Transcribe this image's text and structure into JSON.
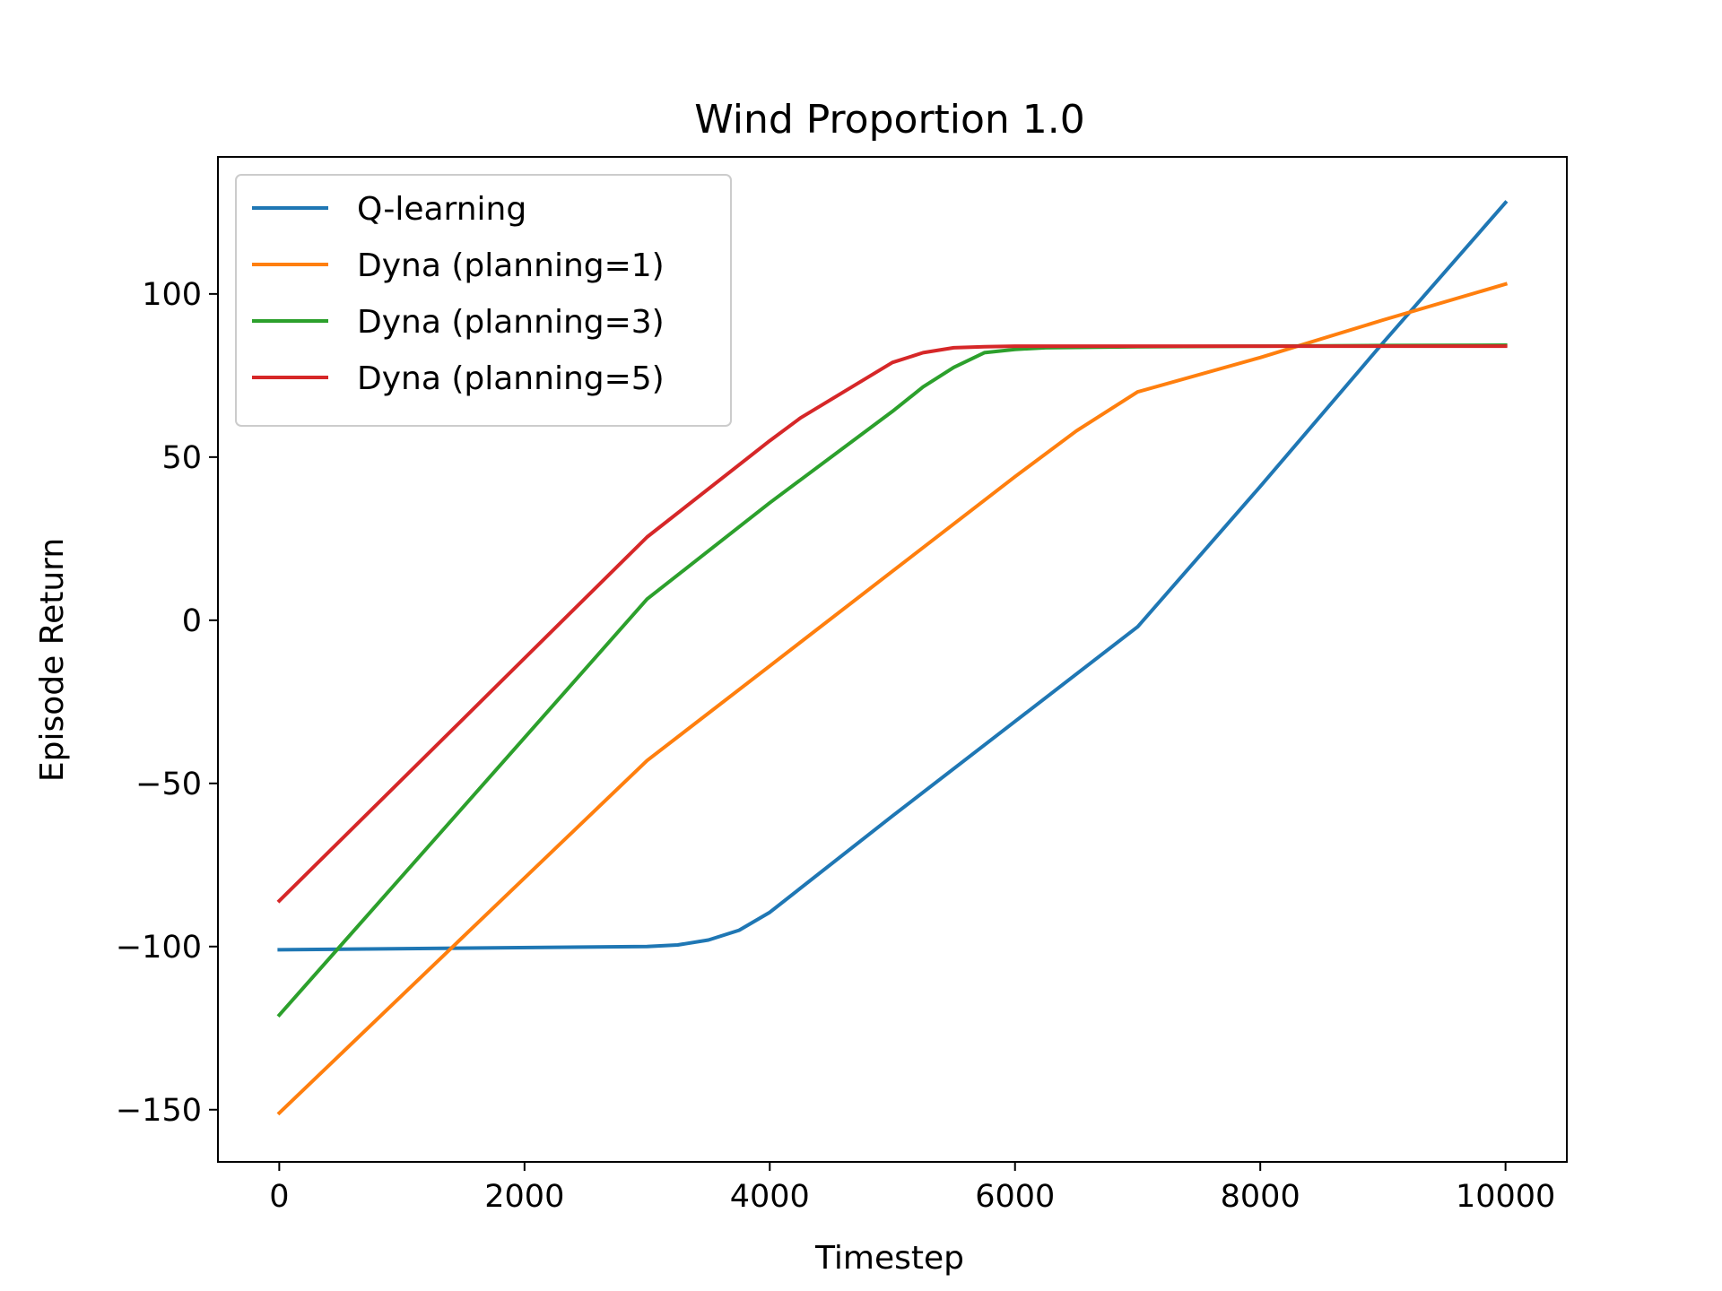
{
  "chart_data": {
    "type": "line",
    "title": "Wind Proportion 1.0",
    "xlabel": "Timestep",
    "ylabel": "Episode Return",
    "xlim": [
      -500,
      10500
    ],
    "ylim": [
      -166,
      142
    ],
    "xticks": [
      0,
      2000,
      4000,
      6000,
      8000,
      10000
    ],
    "xtick_labels": [
      "0",
      "2000",
      "4000",
      "6000",
      "8000",
      "10000"
    ],
    "yticks": [
      -150,
      -100,
      -50,
      0,
      50,
      100
    ],
    "ytick_labels": [
      "−150",
      "−100",
      "−50",
      "0",
      "50",
      "100"
    ],
    "grid": false,
    "legend_position": "upper-left",
    "series": [
      {
        "name": "Q-learning",
        "color": "#1f77b4",
        "x": [
          0,
          3000,
          3250,
          3500,
          3750,
          4000,
          5000,
          6000,
          7000,
          8000,
          9000,
          10000
        ],
        "y": [
          -101,
          -100,
          -99.5,
          -98,
          -95,
          -89.5,
          -60,
          -31,
          -2,
          41,
          85,
          128
        ]
      },
      {
        "name": "Dyna (planning=1)",
        "color": "#ff7f0e",
        "x": [
          0,
          3000,
          4000,
          5000,
          6000,
          6500,
          7000,
          8000,
          9000,
          10000
        ],
        "y": [
          -151,
          -43,
          -14,
          15,
          44,
          58,
          70,
          80.5,
          92,
          103
        ]
      },
      {
        "name": "Dyna (planning=3)",
        "color": "#2ca02c",
        "x": [
          0,
          3000,
          4000,
          4250,
          5000,
          5250,
          5500,
          5750,
          6000,
          6250,
          7000,
          8000,
          9000,
          10000
        ],
        "y": [
          -121,
          6.5,
          36,
          43,
          64,
          71.5,
          77.5,
          82,
          83,
          83.5,
          83.8,
          84,
          84.2,
          84.3
        ]
      },
      {
        "name": "Dyna (planning=5)",
        "color": "#d62728",
        "x": [
          0,
          3000,
          4000,
          4250,
          5000,
          5250,
          5500,
          5750,
          6000,
          7000,
          8000,
          9000,
          10000
        ],
        "y": [
          -86,
          25.5,
          55,
          62,
          79,
          82,
          83.5,
          83.8,
          84,
          84,
          84,
          84,
          84
        ]
      }
    ]
  }
}
